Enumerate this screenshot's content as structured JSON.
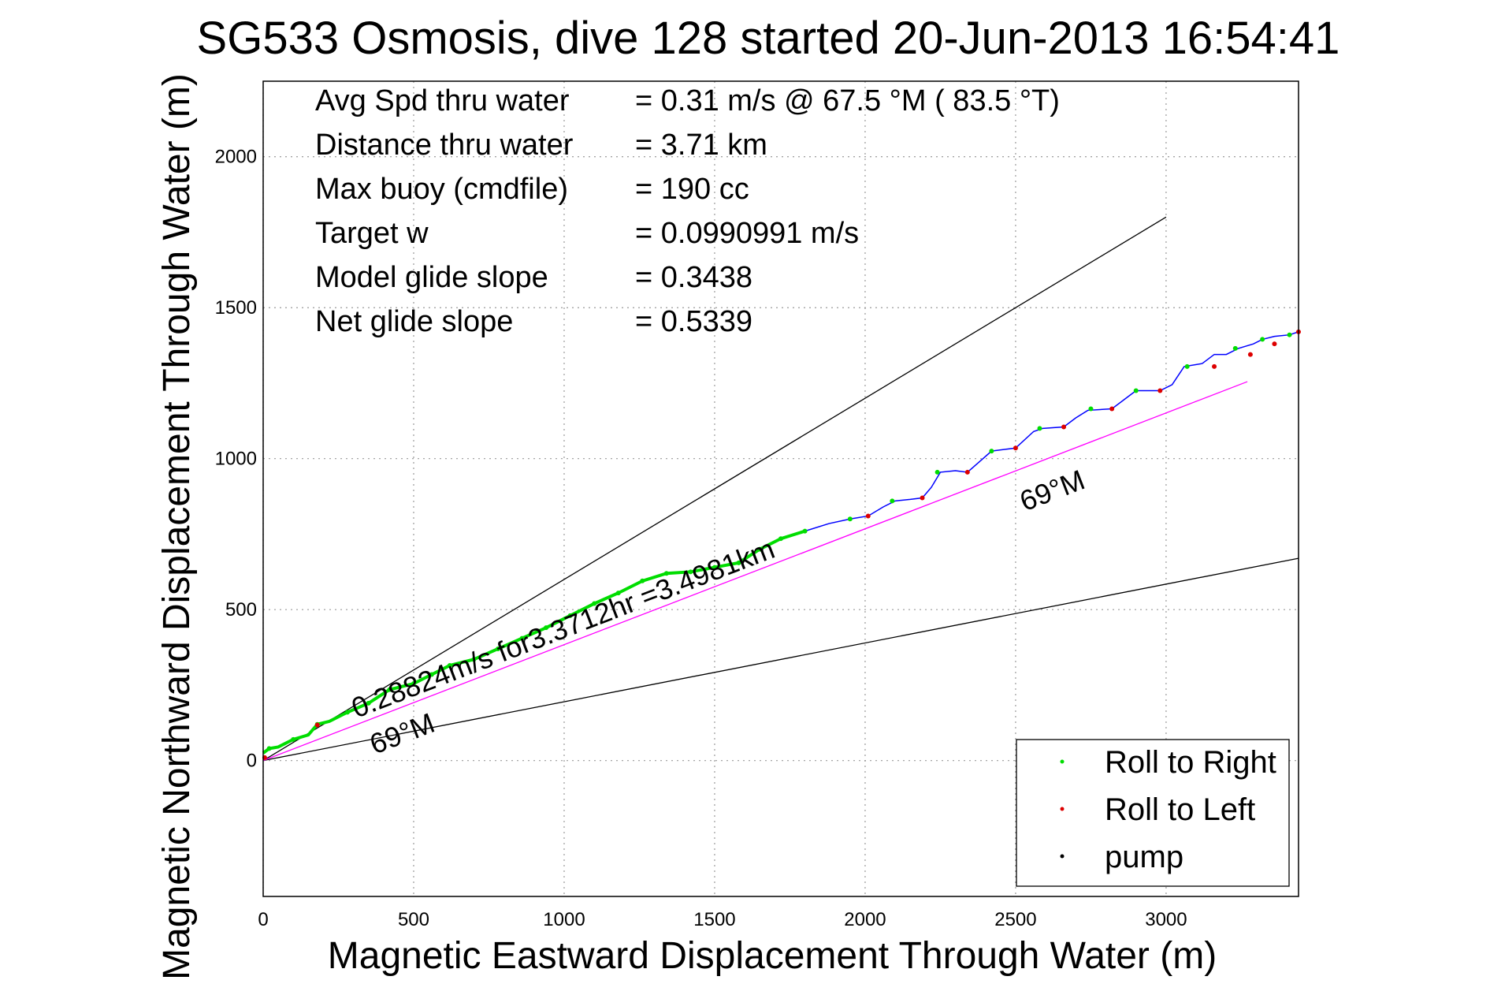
{
  "chart_data": {
    "type": "line",
    "title": "SG533 Osmosis, dive 128 started 20-Jun-2013 16:54:41",
    "xlabel": "Magnetic Eastward Displacement Through Water (m)",
    "ylabel": "Magnetic Northward Displacement Through Water (m)",
    "xlim": [
      0,
      3440
    ],
    "ylim": [
      -450,
      2250
    ],
    "xticks": [
      0,
      500,
      1000,
      1500,
      2000,
      2500,
      3000
    ],
    "yticks": [
      0,
      500,
      1000,
      1500,
      2000
    ],
    "grid": true,
    "legend_position": "bottom-right",
    "stats": [
      {
        "label": "Avg Spd thru water",
        "value": "=  0.31 m/s @  67.5 °M ( 83.5 °T)"
      },
      {
        "label": "Distance thru water",
        "value": "=  3.71 km"
      },
      {
        "label": "Max buoy (cmdfile)",
        "value": "= 190 cc"
      },
      {
        "label": "Target w",
        "value": "= 0.0990991 m/s"
      },
      {
        "label": "Model glide slope",
        "value": "= 0.3438"
      },
      {
        "label": "Net glide slope",
        "value": "= 0.5339"
      }
    ],
    "annotations": [
      {
        "text": "0.28824m/s for3.3712hr =3.4981km",
        "x": 310,
        "y": 140,
        "angle_data": 21
      },
      {
        "text": "69°M",
        "x": 370,
        "y": 20,
        "angle_data": 21
      },
      {
        "text": "69°M",
        "x": 2530,
        "y": 825,
        "angle_data": 21
      }
    ],
    "reference_lines": [
      {
        "name": "upper bound",
        "color": "#000000",
        "points": [
          [
            0,
            0
          ],
          [
            3000,
            1800
          ]
        ]
      },
      {
        "name": "lower bound",
        "color": "#000000",
        "points": [
          [
            0,
            0
          ],
          [
            3440,
            670
          ]
        ]
      },
      {
        "name": "heading 69°M",
        "color": "#ff00ff",
        "points": [
          [
            0,
            0
          ],
          [
            3270,
            1255
          ]
        ]
      }
    ],
    "series": [
      {
        "name": "track",
        "color": "#0000ff",
        "x": [
          0,
          20,
          50,
          100,
          150,
          180,
          220,
          280,
          350,
          420,
          500,
          560,
          620,
          700,
          780,
          860,
          940,
          1020,
          1100,
          1180,
          1260,
          1340,
          1420,
          1500,
          1580,
          1650,
          1720,
          1800,
          1880,
          1950,
          2010,
          2060,
          2100,
          2150,
          2190,
          2220,
          2250,
          2300,
          2340,
          2380,
          2420,
          2500,
          2560,
          2590,
          2660,
          2700,
          2740,
          2820,
          2860,
          2900,
          2980,
          3020,
          3060,
          3120,
          3160,
          3200,
          3240,
          3290,
          3320,
          3360,
          3410,
          3440
        ],
        "y": [
          25,
          40,
          45,
          70,
          85,
          120,
          130,
          160,
          190,
          235,
          255,
          285,
          315,
          335,
          370,
          405,
          440,
          480,
          520,
          555,
          595,
          620,
          625,
          640,
          655,
          700,
          735,
          760,
          785,
          800,
          810,
          840,
          860,
          865,
          870,
          905,
          955,
          960,
          955,
          990,
          1025,
          1035,
          1090,
          1100,
          1105,
          1135,
          1160,
          1165,
          1195,
          1225,
          1225,
          1245,
          1305,
          1315,
          1345,
          1345,
          1365,
          1380,
          1395,
          1405,
          1410,
          1420
        ]
      },
      {
        "name": "Roll to Right",
        "color": "#00dd00",
        "x": [
          20,
          100,
          180,
          280,
          350,
          420,
          500,
          560,
          620,
          700,
          780,
          860,
          940,
          1020,
          1100,
          1180,
          1260,
          1340,
          1420,
          1500,
          1580,
          1650,
          1720,
          1800,
          1950,
          2090,
          2240,
          2420,
          2580,
          2750,
          2900,
          3070,
          3230,
          3320,
          3410
        ],
        "y": [
          40,
          70,
          120,
          160,
          190,
          235,
          255,
          285,
          315,
          335,
          370,
          405,
          440,
          480,
          520,
          555,
          595,
          620,
          625,
          640,
          655,
          700,
          735,
          760,
          800,
          860,
          955,
          1025,
          1100,
          1165,
          1225,
          1305,
          1365,
          1395,
          1410
        ]
      },
      {
        "name": "Roll to Left",
        "color": "#dd0000",
        "x": [
          5,
          180,
          2010,
          2190,
          2340,
          2500,
          2660,
          2820,
          2980,
          3160,
          3280,
          3360,
          3440
        ],
        "y": [
          10,
          118,
          810,
          870,
          955,
          1035,
          1105,
          1165,
          1225,
          1305,
          1345,
          1380,
          1420
        ]
      },
      {
        "name": "pump",
        "color": "#000000",
        "x": [],
        "y": []
      }
    ]
  }
}
